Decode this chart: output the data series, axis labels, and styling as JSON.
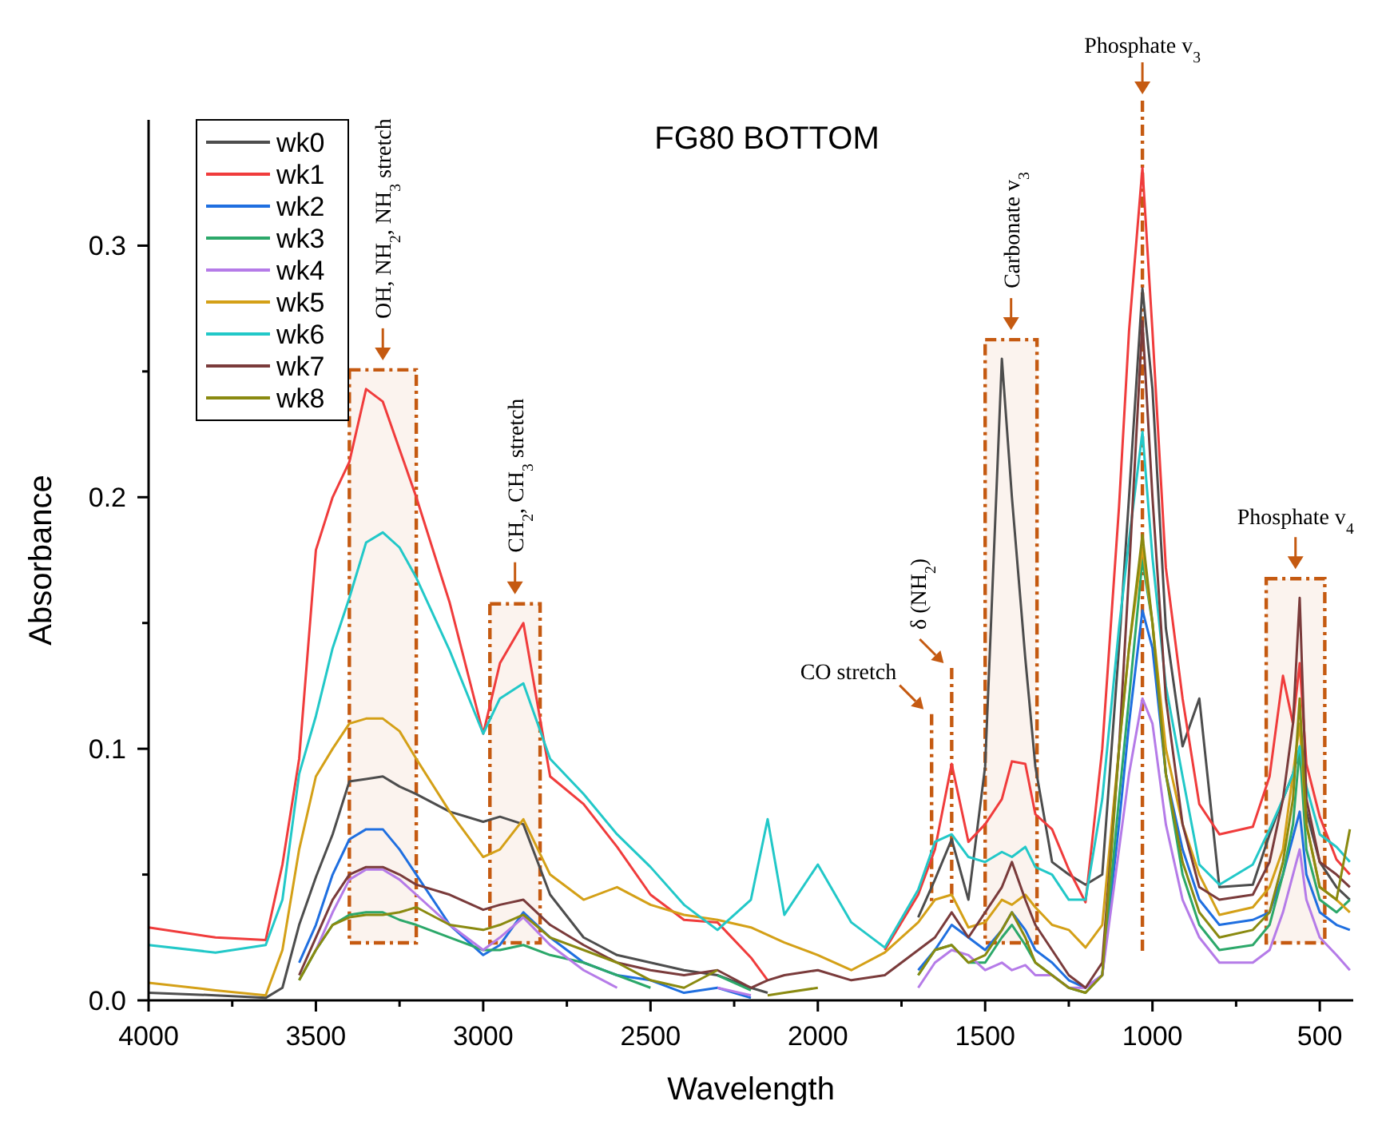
{
  "chart_data": {
    "type": "line",
    "title": "FG80 BOTTOM",
    "xlabel": "Wavelength",
    "ylabel": "Absorbance",
    "x": [
      4000,
      3800,
      3650,
      3600,
      3550,
      3500,
      3450,
      3400,
      3350,
      3300,
      3250,
      3200,
      3100,
      3000,
      2950,
      2880,
      2800,
      2700,
      2600,
      2500,
      2400,
      2300,
      2200,
      2150,
      2100,
      2000,
      1900,
      1800,
      1700,
      1650,
      1600,
      1550,
      1500,
      1450,
      1420,
      1380,
      1350,
      1300,
      1250,
      1200,
      1150,
      1100,
      1070,
      1030,
      1000,
      960,
      910,
      860,
      800,
      700,
      650,
      610,
      580,
      560,
      540,
      500,
      450,
      410
    ],
    "series": [
      {
        "name": "wk0",
        "color": "#4d4d4d",
        "values": [
          0.003,
          0.002,
          0.001,
          0.005,
          0.03,
          0.049,
          0.066,
          0.087,
          0.088,
          0.089,
          0.085,
          0.082,
          0.075,
          0.071,
          0.073,
          0.07,
          0.042,
          0.025,
          0.018,
          0.015,
          0.012,
          0.01,
          0.005,
          0.003,
          null,
          null,
          null,
          null,
          0.033,
          0.048,
          0.064,
          0.04,
          0.093,
          0.255,
          0.2,
          0.136,
          0.093,
          0.055,
          0.05,
          0.046,
          0.05,
          0.14,
          0.2,
          0.283,
          0.243,
          0.148,
          0.101,
          0.12,
          0.045,
          0.046,
          0.066,
          0.08,
          0.09,
          0.1,
          0.075,
          0.055,
          0.045,
          0.04
        ]
      },
      {
        "name": "wk1",
        "color": "#f03c3c",
        "values": [
          0.029,
          0.025,
          0.024,
          0.054,
          0.096,
          0.179,
          0.2,
          0.214,
          0.243,
          0.238,
          0.219,
          0.2,
          0.158,
          0.106,
          0.134,
          0.15,
          0.089,
          0.078,
          0.061,
          0.042,
          0.032,
          0.031,
          0.017,
          0.008,
          null,
          null,
          null,
          0.02,
          0.042,
          0.06,
          0.094,
          0.063,
          0.07,
          0.08,
          0.095,
          0.094,
          0.074,
          0.068,
          0.052,
          0.039,
          0.1,
          0.196,
          0.266,
          0.331,
          0.266,
          0.172,
          0.12,
          0.078,
          0.066,
          0.069,
          0.089,
          0.129,
          0.11,
          0.134,
          0.094,
          0.073,
          0.056,
          0.05
        ]
      },
      {
        "name": "wk2",
        "color": "#1f6fe0",
        "values": [
          null,
          null,
          null,
          null,
          0.015,
          0.03,
          0.05,
          0.064,
          0.068,
          0.068,
          0.06,
          0.05,
          0.03,
          0.018,
          0.022,
          0.035,
          0.025,
          0.015,
          0.01,
          0.008,
          0.003,
          0.005,
          0.001,
          null,
          null,
          null,
          null,
          null,
          0.012,
          0.02,
          0.03,
          0.025,
          0.02,
          0.028,
          0.035,
          0.028,
          0.02,
          0.015,
          0.008,
          0.005,
          0.01,
          0.07,
          0.11,
          0.155,
          0.14,
          0.09,
          0.06,
          0.04,
          0.03,
          0.032,
          0.035,
          0.05,
          0.065,
          0.075,
          0.05,
          0.035,
          0.03,
          0.028
        ]
      },
      {
        "name": "wk3",
        "color": "#2ca86a",
        "values": [
          null,
          null,
          null,
          null,
          0.008,
          0.02,
          0.03,
          0.034,
          0.035,
          0.035,
          0.032,
          0.03,
          0.025,
          0.02,
          0.02,
          0.022,
          0.018,
          0.015,
          0.01,
          0.005,
          null,
          0.01,
          0.004,
          null,
          null,
          null,
          null,
          null,
          0.01,
          0.02,
          0.022,
          0.015,
          0.015,
          0.025,
          0.03,
          0.022,
          0.015,
          0.01,
          0.005,
          0.003,
          0.01,
          0.08,
          0.12,
          0.175,
          0.15,
          0.09,
          0.05,
          0.03,
          0.02,
          0.022,
          0.03,
          0.05,
          0.07,
          0.1,
          0.06,
          0.04,
          0.035,
          0.04
        ]
      },
      {
        "name": "wk4",
        "color": "#b57be8",
        "values": [
          null,
          null,
          null,
          null,
          null,
          0.02,
          0.035,
          0.048,
          0.052,
          0.052,
          0.048,
          0.042,
          0.03,
          0.02,
          0.025,
          0.033,
          0.022,
          0.012,
          0.005,
          null,
          null,
          0.005,
          0.002,
          null,
          null,
          null,
          null,
          null,
          0.005,
          0.015,
          0.02,
          0.018,
          0.012,
          0.015,
          0.012,
          0.014,
          0.01,
          0.01,
          0.005,
          0.005,
          0.01,
          0.06,
          0.09,
          0.12,
          0.11,
          0.07,
          0.04,
          0.025,
          0.015,
          0.015,
          0.02,
          0.035,
          0.05,
          0.06,
          0.04,
          0.025,
          0.018,
          0.012
        ]
      },
      {
        "name": "wk5",
        "color": "#d4a017",
        "values": [
          0.007,
          0.004,
          0.002,
          0.02,
          0.06,
          0.089,
          0.1,
          0.11,
          0.112,
          0.112,
          0.107,
          0.096,
          0.075,
          0.057,
          0.06,
          0.072,
          0.05,
          0.04,
          0.045,
          0.038,
          0.034,
          0.032,
          0.029,
          0.026,
          0.023,
          0.018,
          0.012,
          0.019,
          0.031,
          0.04,
          0.042,
          0.029,
          0.031,
          0.04,
          0.038,
          0.042,
          0.037,
          0.03,
          0.028,
          0.021,
          0.03,
          0.1,
          0.14,
          0.18,
          0.15,
          0.1,
          0.07,
          0.05,
          0.034,
          0.037,
          0.045,
          0.06,
          0.09,
          0.11,
          0.07,
          0.045,
          0.04,
          0.035
        ]
      },
      {
        "name": "wk6",
        "color": "#22c8c8",
        "values": [
          0.022,
          0.019,
          0.022,
          0.04,
          0.09,
          0.113,
          0.14,
          0.16,
          0.182,
          0.186,
          0.18,
          0.168,
          0.139,
          0.106,
          0.12,
          0.126,
          0.096,
          0.082,
          0.066,
          0.053,
          0.038,
          0.028,
          0.04,
          0.072,
          0.034,
          0.054,
          0.031,
          0.021,
          0.044,
          0.063,
          0.066,
          0.057,
          0.055,
          0.059,
          0.057,
          0.061,
          0.053,
          0.05,
          0.04,
          0.04,
          0.08,
          0.148,
          0.183,
          0.226,
          0.176,
          0.125,
          0.089,
          0.054,
          0.046,
          0.054,
          0.068,
          0.08,
          0.09,
          0.101,
          0.085,
          0.066,
          0.061,
          0.055
        ]
      },
      {
        "name": "wk7",
        "color": "#7a3b3b",
        "values": [
          null,
          null,
          null,
          null,
          0.01,
          0.025,
          0.04,
          0.05,
          0.053,
          0.053,
          0.05,
          0.046,
          0.042,
          0.036,
          0.038,
          0.04,
          0.03,
          0.022,
          0.015,
          0.012,
          0.01,
          0.012,
          0.005,
          0.008,
          0.01,
          0.012,
          0.008,
          0.01,
          0.02,
          0.025,
          0.035,
          0.025,
          0.035,
          0.045,
          0.055,
          0.04,
          0.03,
          0.02,
          0.01,
          0.005,
          0.015,
          0.1,
          0.17,
          0.27,
          0.2,
          0.12,
          0.07,
          0.045,
          0.04,
          0.042,
          0.055,
          0.08,
          0.11,
          0.16,
          0.08,
          0.055,
          0.05,
          0.045
        ]
      },
      {
        "name": "wk8",
        "color": "#8a8a10",
        "values": [
          null,
          null,
          null,
          null,
          0.008,
          0.02,
          0.03,
          0.033,
          0.034,
          0.034,
          0.035,
          0.037,
          0.03,
          0.028,
          0.03,
          0.034,
          0.025,
          0.02,
          0.015,
          0.008,
          0.005,
          0.012,
          null,
          0.002,
          0.003,
          0.005,
          null,
          null,
          0.01,
          0.02,
          0.022,
          0.015,
          0.018,
          0.028,
          0.035,
          0.025,
          0.015,
          0.01,
          0.005,
          0.003,
          0.01,
          0.1,
          0.14,
          0.185,
          0.15,
          0.09,
          0.055,
          0.035,
          0.025,
          0.028,
          0.035,
          0.055,
          0.08,
          0.12,
          0.07,
          0.045,
          0.04,
          0.068
        ]
      }
    ],
    "xlim": [
      4000,
      400
    ],
    "xticks": [
      4000,
      {
        "value": 3750,
        "label": null
      },
      3500,
      {
        "value": 3250,
        "label": null
      },
      3000,
      {
        "value": 2750,
        "label": null
      },
      2500,
      {
        "value": 2250,
        "label": null
      },
      2000,
      {
        "value": 1750,
        "label": null
      },
      1500,
      {
        "value": 1250,
        "label": null
      },
      1000,
      {
        "value": 750,
        "label": null
      },
      500
    ],
    "ylim": [
      0,
      0.35
    ],
    "yticks": [
      {
        "value": 0,
        "label": "0.0"
      },
      {
        "value": 0.05,
        "label": null
      },
      0.1,
      {
        "value": 0.15,
        "label": null
      },
      0.2,
      {
        "value": 0.25,
        "label": null
      },
      0.3
    ],
    "grid": false,
    "legend": "top left",
    "line_style": "solid",
    "marker": "none",
    "bands": [
      {
        "axis": "x",
        "from": 3400,
        "to": 3200,
        "label": "OH, NH$_{2}$, NH$_{3}$ stretch",
        "color": "#c55a11"
      },
      {
        "axis": "x",
        "from": 2980,
        "to": 2830,
        "label": "CH$_{2}$, CH$_{3}$ stretch",
        "color": "#c55a11"
      },
      {
        "axis": "x",
        "from": 1500,
        "to": 1345,
        "label": "Carbonate v$_{3}$",
        "color": "#c55a11"
      },
      {
        "axis": "x",
        "from": 660,
        "to": 485,
        "label": "Phosphate v$_{4}$",
        "color": "#c55a11"
      }
    ],
    "ref_lines": [
      {
        "axis": "x",
        "value": 1660,
        "label": "CO stretch",
        "color": "#c55a11",
        "line_style": "dashed"
      },
      {
        "axis": "x",
        "value": 1600,
        "label": "δ (NH$_{2}$)",
        "color": "#c55a11",
        "line_style": "dashed"
      },
      {
        "axis": "x",
        "value": 1030,
        "label": "Phosphate v$_{3}$",
        "color": "#c55a11",
        "line_style": "dashed"
      }
    ]
  }
}
